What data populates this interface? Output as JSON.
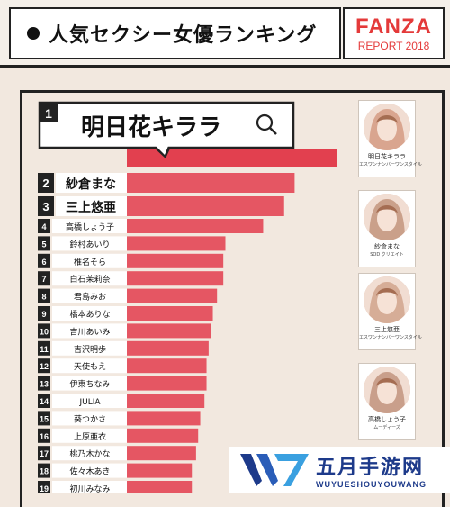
{
  "header": {
    "title": "人気セクシー女優ランキング",
    "brand_logo": "FANZA",
    "brand_sub": "REPORT 2018"
  },
  "chart_data": {
    "type": "bar",
    "orientation": "horizontal",
    "ranks": [
      "1",
      "2",
      "3",
      "4",
      "5",
      "6",
      "7",
      "8",
      "9",
      "10",
      "11",
      "12",
      "13",
      "14",
      "15",
      "16",
      "17",
      "18",
      "19"
    ],
    "categories": [
      "明日花キララ",
      "紗倉まな",
      "三上悠亜",
      "高橋しょう子",
      "鈴村あいり",
      "椎名そら",
      "白石茉莉奈",
      "君島みお",
      "橋本ありな",
      "吉川あいみ",
      "吉沢明歩",
      "天使もえ",
      "伊東ちなみ",
      "JULIA",
      "葵つかさ",
      "上原亜衣",
      "桃乃木かな",
      "佐々木あき",
      "初川みなみ"
    ],
    "values": [
      100,
      80,
      75,
      65,
      47,
      46,
      46,
      43,
      41,
      40,
      39,
      38,
      38,
      37,
      35,
      34,
      33,
      31,
      31
    ],
    "bar_color": "#e55663",
    "top_bar_color": "#e2404f"
  },
  "profiles": [
    {
      "name": "明日花キララ",
      "label": "エスワンナンバーワンスタイル",
      "icon": "actress-photo-icon"
    },
    {
      "name": "紗倉まな",
      "label": "SOD クリエイト",
      "icon": "actress-photo-icon"
    },
    {
      "name": "三上悠亜",
      "label": "エスワンナンバーワンスタイル",
      "icon": "actress-photo-icon"
    },
    {
      "name": "高橋しょう子",
      "label": "ムーディーズ",
      "icon": "actress-photo-icon"
    }
  ],
  "watermark": {
    "cn": "五月手游网",
    "en": "WUYUESHOUYOUWANG"
  }
}
